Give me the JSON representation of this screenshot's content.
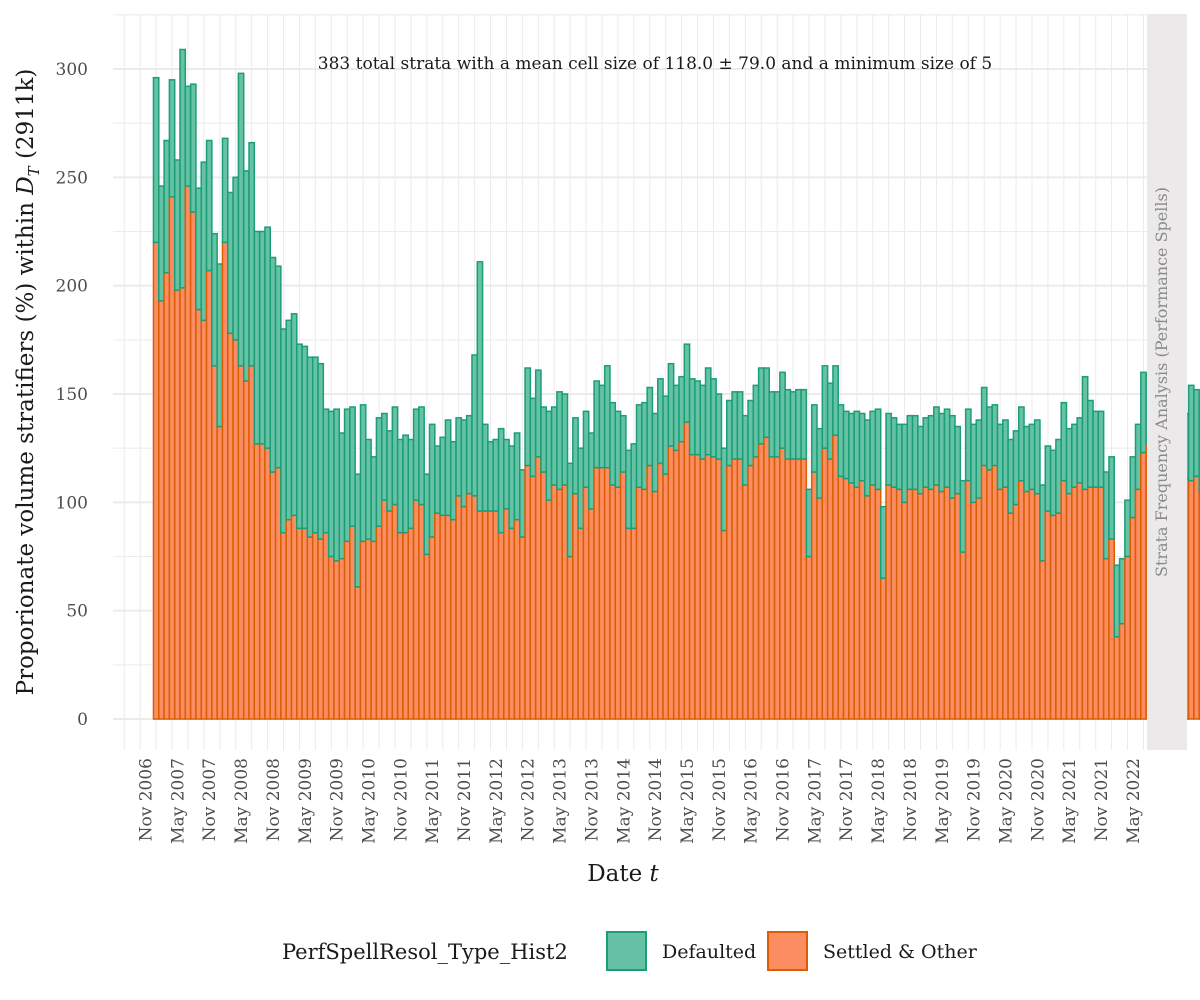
{
  "chart_data": {
    "type": "bar",
    "stacked": true,
    "annotation": "383 total strata with a mean cell size of 118.0 ± 79.0 and a minimum size of 5",
    "xlabel": "Date",
    "xlabel_var": "t",
    "ylabel_prefix": "Proporionate volume stratifiers (%) within ",
    "ylabel_sym": "D",
    "ylabel_sub": "T",
    "ylabel_suffix": " (2911k)",
    "strip_label": "Strata Frequency Analysis (Performance Spells)",
    "ylim": [
      0,
      320
    ],
    "y_ticks": [
      0,
      50,
      100,
      150,
      200,
      250,
      300
    ],
    "grid": true,
    "legend_position": "bottom",
    "legend_title": "PerfSpellResol_Type_Hist2",
    "x_start": "2007-01",
    "x_end": "2021-12",
    "x_ticks": [
      "Nov 2006",
      "May 2007",
      "Nov 2007",
      "May 2008",
      "Nov 2008",
      "May 2009",
      "Nov 2009",
      "May 2010",
      "Nov 2010",
      "May 2011",
      "Nov 2011",
      "May 2012",
      "Nov 2012",
      "May 2013",
      "Nov 2013",
      "May 2014",
      "Nov 2014",
      "May 2015",
      "Nov 2015",
      "May 2016",
      "Nov 2016",
      "May 2017",
      "Nov 2017",
      "May 2018",
      "Nov 2018",
      "May 2019",
      "Nov 2019",
      "May 2020",
      "Nov 2020",
      "May 2021",
      "Nov 2021",
      "May 2022"
    ],
    "series": [
      {
        "name": "Defaulted",
        "fill": "#66c2a5",
        "stroke": "#1b9e77",
        "values": [
          76,
          53,
          61,
          54,
          60,
          110,
          46,
          59,
          56,
          73,
          60,
          61,
          75,
          48,
          65,
          75,
          135,
          97,
          103,
          98,
          98,
          102,
          99,
          93,
          94,
          92,
          93,
          85,
          84,
          83,
          81,
          81,
          57,
          67,
          70,
          58,
          61,
          55,
          52,
          63,
          46,
          39,
          50,
          40,
          37,
          45,
          43,
          45,
          41,
          42,
          45,
          37,
          52,
          31,
          36,
          44,
          36,
          36,
          40,
          36,
          65,
          115,
          40,
          32,
          33,
          48,
          32,
          38,
          40,
          31,
          45,
          36,
          40,
          30,
          41,
          36,
          45,
          42,
          43,
          35,
          37,
          35,
          35,
          40,
          38,
          47,
          38,
          35,
          26,
          36,
          39,
          38,
          40,
          36,
          36,
          39,
          36,
          38,
          30,
          30,
          36,
          35,
          34,
          34,
          40,
          36,
          30,
          38,
          30,
          31,
          31,
          32,
          30,
          33,
          35,
          32,
          30,
          30,
          35,
          32,
          31,
          32,
          32,
          31,
          31,
          32,
          38,
          35,
          32,
          33,
          31,
          32,
          35,
          31,
          35,
          34,
          37,
          33,
          33,
          32,
          30,
          36,
          34,
          34,
          31,
          32,
          34,
          36,
          36,
          36,
          38,
          31,
          33,
          33,
          36,
          36,
          36,
          29,
          28,
          30,
          31,
          34,
          34,
          34,
          30,
          30,
          34,
          35,
          30,
          30,
          34,
          36,
          30,
          29,
          30,
          52,
          40,
          35,
          35,
          40,
          38,
          33,
          30,
          26,
          28,
          30,
          37,
          32,
          35,
          37,
          35,
          37,
          35,
          38,
          30,
          44,
          40,
          42,
          46,
          40,
          27,
          38,
          29,
          27,
          30,
          30,
          28,
          34,
          30
        ]
      },
      {
        "name": "Settled & Other",
        "fill": "#fc8d62",
        "stroke": "#d95f02",
        "values": [
          220,
          193,
          206,
          241,
          198,
          199,
          246,
          234,
          189,
          184,
          207,
          163,
          135,
          220,
          178,
          175,
          163,
          156,
          163,
          127,
          127,
          125,
          114,
          116,
          86,
          92,
          94,
          88,
          88,
          84,
          86,
          83,
          86,
          75,
          73,
          74,
          82,
          89,
          61,
          82,
          83,
          82,
          89,
          101,
          96,
          99,
          86,
          86,
          88,
          101,
          99,
          76,
          84,
          95,
          94,
          94,
          92,
          103,
          98,
          104,
          103,
          96,
          96,
          96,
          96,
          86,
          97,
          88,
          92,
          84,
          117,
          112,
          121,
          114,
          101,
          108,
          106,
          108,
          75,
          104,
          88,
          107,
          97,
          116,
          116,
          116,
          108,
          107,
          114,
          88,
          88,
          107,
          106,
          117,
          105,
          118,
          113,
          126,
          124,
          128,
          137,
          122,
          122,
          120,
          122,
          121,
          120,
          87,
          117,
          120,
          120,
          108,
          117,
          121,
          127,
          130,
          121,
          121,
          125,
          120,
          120,
          120,
          120,
          75,
          114,
          102,
          125,
          120,
          131,
          112,
          111,
          109,
          107,
          110,
          103,
          108,
          106,
          65,
          108,
          107,
          106,
          100,
          106,
          106,
          104,
          107,
          106,
          108,
          105,
          107,
          102,
          104,
          77,
          110,
          100,
          102,
          117,
          115,
          117,
          106,
          107,
          95,
          99,
          110,
          105,
          106,
          104,
          73,
          96,
          94,
          95,
          110,
          104,
          107,
          109,
          106,
          107,
          107,
          107,
          74,
          83,
          38,
          44,
          75,
          93,
          106,
          123,
          127,
          139,
          138,
          124,
          75,
          113,
          130,
          111,
          110,
          112,
          105,
          107,
          128,
          125,
          103,
          109,
          117,
          107,
          113,
          118,
          116,
          130
        ]
      }
    ]
  }
}
